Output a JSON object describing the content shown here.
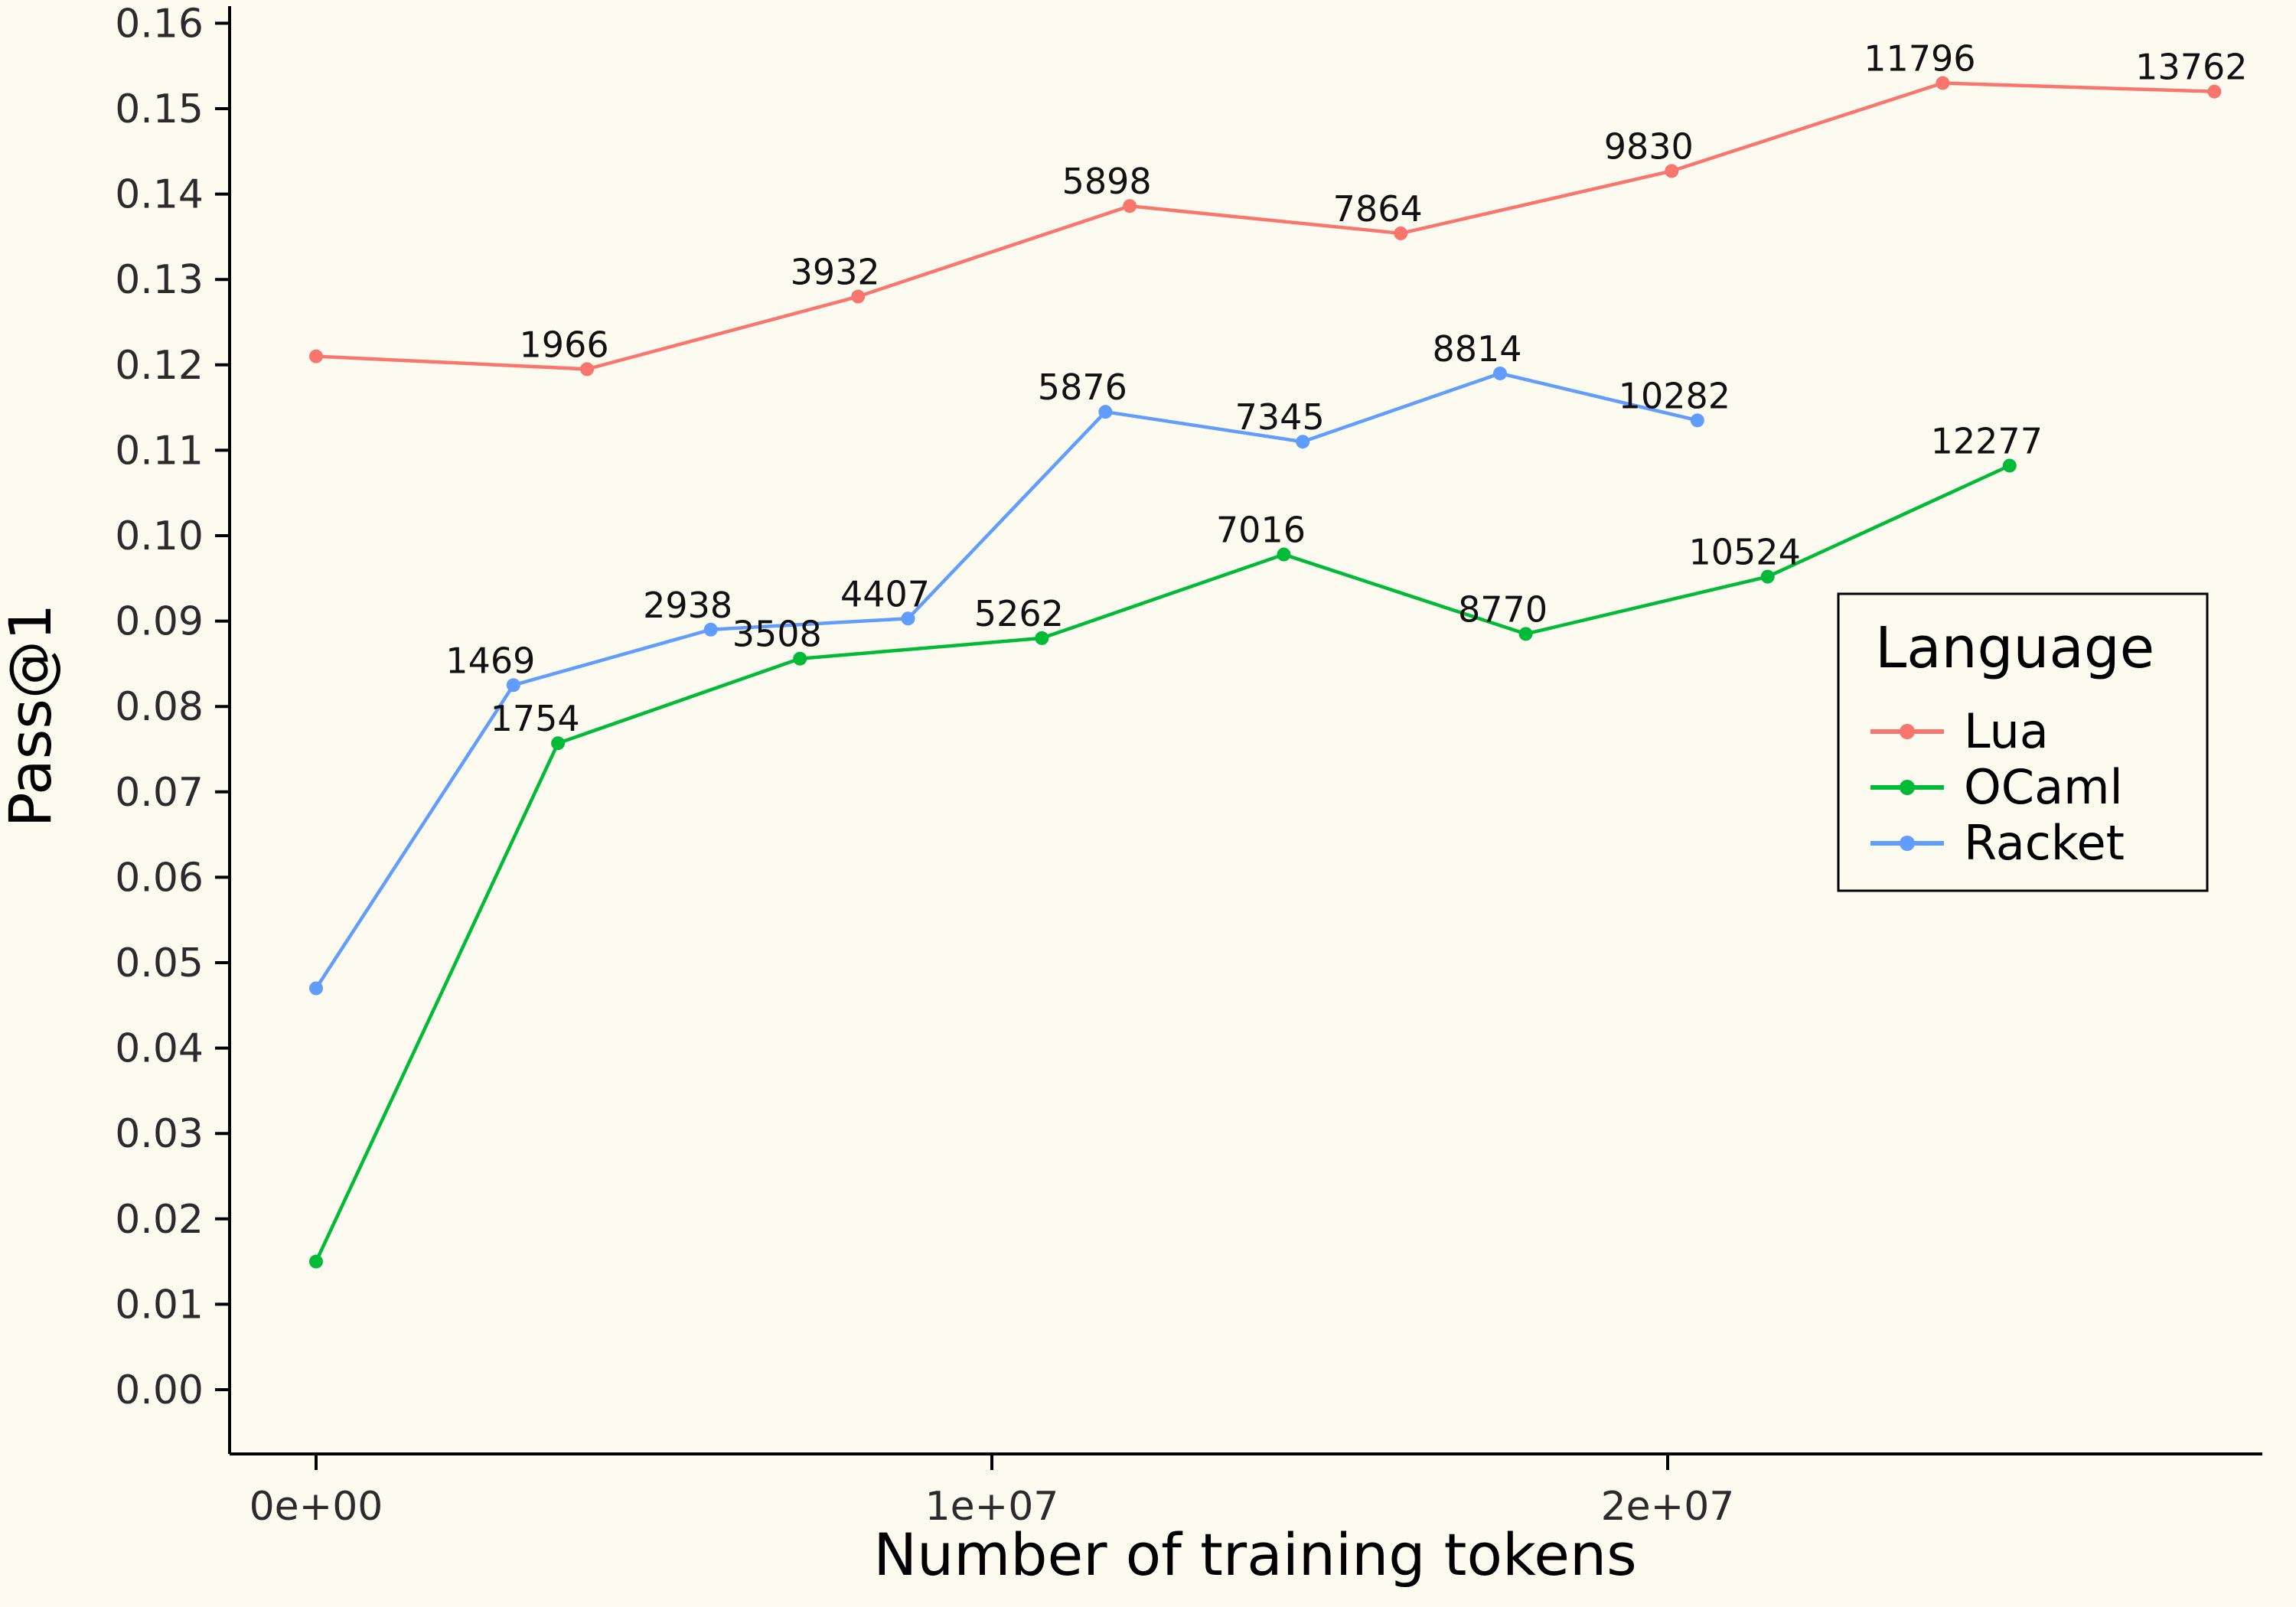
{
  "colors": {
    "background": "#fdfaf0",
    "axis": "#000000",
    "tick_text": "#2b2b2b",
    "lua": "#F8766D",
    "ocaml": "#00BA38",
    "racket": "#619CFF"
  },
  "chart_data": {
    "type": "line",
    "title": "",
    "xlabel": "Number of training tokens",
    "ylabel": "Pass@1",
    "grid": false,
    "x_axis": {
      "range": [
        -1280000,
        28800000
      ],
      "ticks": [
        {
          "value": 0,
          "label": "0e+00"
        },
        {
          "value": 10000000,
          "label": "1e+07"
        },
        {
          "value": 20000000,
          "label": "2e+07"
        }
      ]
    },
    "y_axis": {
      "range": [
        0,
        0.16
      ],
      "tick_step": 0.01,
      "ticks": [
        {
          "value": 0.0,
          "label": "0.00"
        },
        {
          "value": 0.01,
          "label": "0.01"
        },
        {
          "value": 0.02,
          "label": "0.02"
        },
        {
          "value": 0.03,
          "label": "0.03"
        },
        {
          "value": 0.04,
          "label": "0.04"
        },
        {
          "value": 0.05,
          "label": "0.05"
        },
        {
          "value": 0.06,
          "label": "0.06"
        },
        {
          "value": 0.07,
          "label": "0.07"
        },
        {
          "value": 0.08,
          "label": "0.08"
        },
        {
          "value": 0.09,
          "label": "0.09"
        },
        {
          "value": 0.1,
          "label": "0.10"
        },
        {
          "value": 0.11,
          "label": "0.11"
        },
        {
          "value": 0.12,
          "label": "0.12"
        },
        {
          "value": 0.13,
          "label": "0.13"
        },
        {
          "value": 0.14,
          "label": "0.14"
        },
        {
          "value": 0.15,
          "label": "0.15"
        },
        {
          "value": 0.16,
          "label": "0.16"
        }
      ]
    },
    "legend": {
      "title": "Language",
      "position": "right-middle",
      "entries": [
        {
          "label": "Lua",
          "color": "#F8766D"
        },
        {
          "label": "OCaml",
          "color": "#00BA38"
        },
        {
          "label": "Racket",
          "color": "#619CFF"
        }
      ]
    },
    "series": [
      {
        "name": "Lua",
        "color": "#F8766D",
        "points": [
          {
            "x": 0,
            "y": 0.121,
            "label": ""
          },
          {
            "x": 4010000,
            "y": 0.1195,
            "label": "1966"
          },
          {
            "x": 8020000,
            "y": 0.128,
            "label": "3932"
          },
          {
            "x": 12040000,
            "y": 0.1386,
            "label": "5898"
          },
          {
            "x": 16050000,
            "y": 0.1354,
            "label": "7864"
          },
          {
            "x": 20060000,
            "y": 0.1427,
            "label": "9830"
          },
          {
            "x": 24070000,
            "y": 0.153,
            "label": "11796"
          },
          {
            "x": 28090000,
            "y": 0.152,
            "label": "13762"
          }
        ]
      },
      {
        "name": "OCaml",
        "color": "#00BA38",
        "points": [
          {
            "x": 0,
            "y": 0.015,
            "label": ""
          },
          {
            "x": 3580000,
            "y": 0.0757,
            "label": "1754"
          },
          {
            "x": 7160000,
            "y": 0.0856,
            "label": "3508"
          },
          {
            "x": 10740000,
            "y": 0.088,
            "label": "5262"
          },
          {
            "x": 14320000,
            "y": 0.0978,
            "label": "7016"
          },
          {
            "x": 17900000,
            "y": 0.0885,
            "label": "8770"
          },
          {
            "x": 21480000,
            "y": 0.0952,
            "label": "10524"
          },
          {
            "x": 25060000,
            "y": 0.1082,
            "label": "12277"
          }
        ]
      },
      {
        "name": "Racket",
        "color": "#619CFF",
        "points": [
          {
            "x": 0,
            "y": 0.047,
            "label": ""
          },
          {
            "x": 2920000,
            "y": 0.0825,
            "label": "1469"
          },
          {
            "x": 5840000,
            "y": 0.089,
            "label": "2938"
          },
          {
            "x": 8760000,
            "y": 0.0903,
            "label": "4407"
          },
          {
            "x": 11680000,
            "y": 0.1145,
            "label": "5876"
          },
          {
            "x": 14600000,
            "y": 0.111,
            "label": "7345"
          },
          {
            "x": 17520000,
            "y": 0.119,
            "label": "8814"
          },
          {
            "x": 20440000,
            "y": 0.1135,
            "label": "10282"
          }
        ]
      }
    ]
  }
}
